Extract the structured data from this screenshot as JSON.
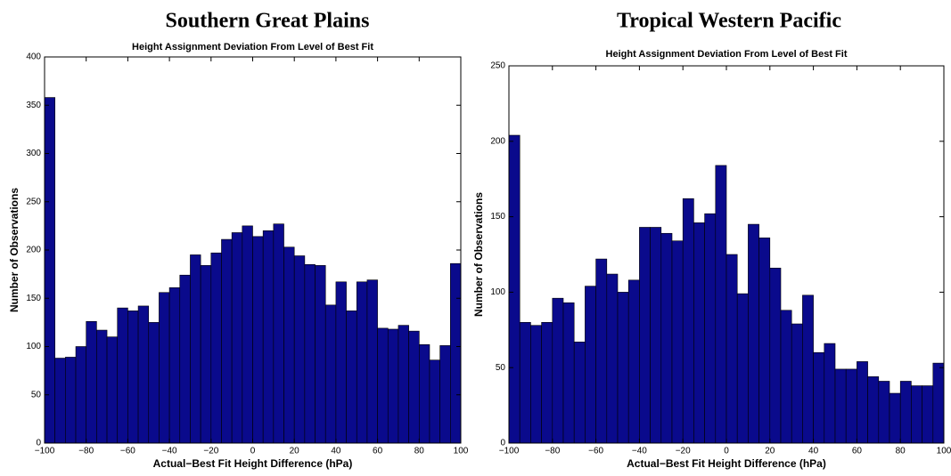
{
  "chart_data": [
    {
      "type": "histogram",
      "heading": "Southern Great Plains",
      "title": "Height Assignment Deviation From Level of Best Fit",
      "xlabel": "Actual−Best Fit Height Difference (hPa)",
      "ylabel": "Number of Observations",
      "bins": [
        -100,
        -95,
        -90,
        -85,
        -80,
        -75,
        -70,
        -65,
        -60,
        -55,
        -50,
        -45,
        -40,
        -35,
        -30,
        -25,
        -20,
        -15,
        -10,
        -5,
        0,
        5,
        10,
        15,
        20,
        25,
        30,
        35,
        40,
        45,
        50,
        55,
        60,
        65,
        70,
        75,
        80,
        85,
        90,
        95,
        100
      ],
      "values": [
        358,
        88,
        89,
        100,
        126,
        117,
        110,
        140,
        137,
        142,
        125,
        156,
        161,
        174,
        195,
        184,
        197,
        211,
        218,
        225,
        214,
        220,
        227,
        203,
        194,
        185,
        184,
        143,
        167,
        137,
        167,
        169,
        119,
        118,
        122,
        116,
        102,
        86,
        101,
        186
      ],
      "color": "#0a0a8c",
      "xlim": [
        -100,
        100
      ],
      "xticks": [
        {
          "value": -100,
          "label": "−100"
        },
        {
          "value": -80,
          "label": "−80"
        },
        {
          "value": -60,
          "label": "−60"
        },
        {
          "value": -40,
          "label": "−40"
        },
        {
          "value": -20,
          "label": "−20"
        },
        0,
        20,
        40,
        60,
        80,
        100
      ],
      "ylim": [
        0,
        400
      ],
      "yticks": [
        0,
        50,
        100,
        150,
        200,
        250,
        300,
        350,
        400
      ]
    },
    {
      "type": "histogram",
      "heading": "Tropical Western Pacific",
      "title": "Height Assignment Deviation From Level of Best Fit",
      "xlabel": "Actual−Best Fit Height Difference (hPa)",
      "ylabel": "Number of Observations",
      "bins": [
        -100,
        -95,
        -90,
        -85,
        -80,
        -75,
        -70,
        -65,
        -60,
        -55,
        -50,
        -45,
        -40,
        -35,
        -30,
        -25,
        -20,
        -15,
        -10,
        -5,
        0,
        5,
        10,
        15,
        20,
        25,
        30,
        35,
        40,
        45,
        50,
        55,
        60,
        65,
        70,
        75,
        80,
        85,
        90,
        95,
        100
      ],
      "values": [
        204,
        80,
        78,
        80,
        96,
        93,
        67,
        104,
        122,
        112,
        100,
        108,
        143,
        143,
        139,
        134,
        162,
        146,
        152,
        184,
        125,
        99,
        145,
        136,
        116,
        88,
        79,
        98,
        60,
        66,
        49,
        49,
        54,
        44,
        41,
        33,
        41,
        38,
        38,
        53
      ],
      "color": "#0a0a8c",
      "xlim": [
        -100,
        100
      ],
      "xticks": [
        {
          "value": -100,
          "label": "−100"
        },
        {
          "value": -80,
          "label": "−80"
        },
        {
          "value": -60,
          "label": "−60"
        },
        {
          "value": -40,
          "label": "−40"
        },
        {
          "value": -20,
          "label": "−20"
        },
        0,
        20,
        40,
        60,
        80,
        100
      ],
      "ylim": [
        0,
        250
      ],
      "yticks": [
        0,
        50,
        100,
        150,
        200,
        250
      ]
    }
  ]
}
